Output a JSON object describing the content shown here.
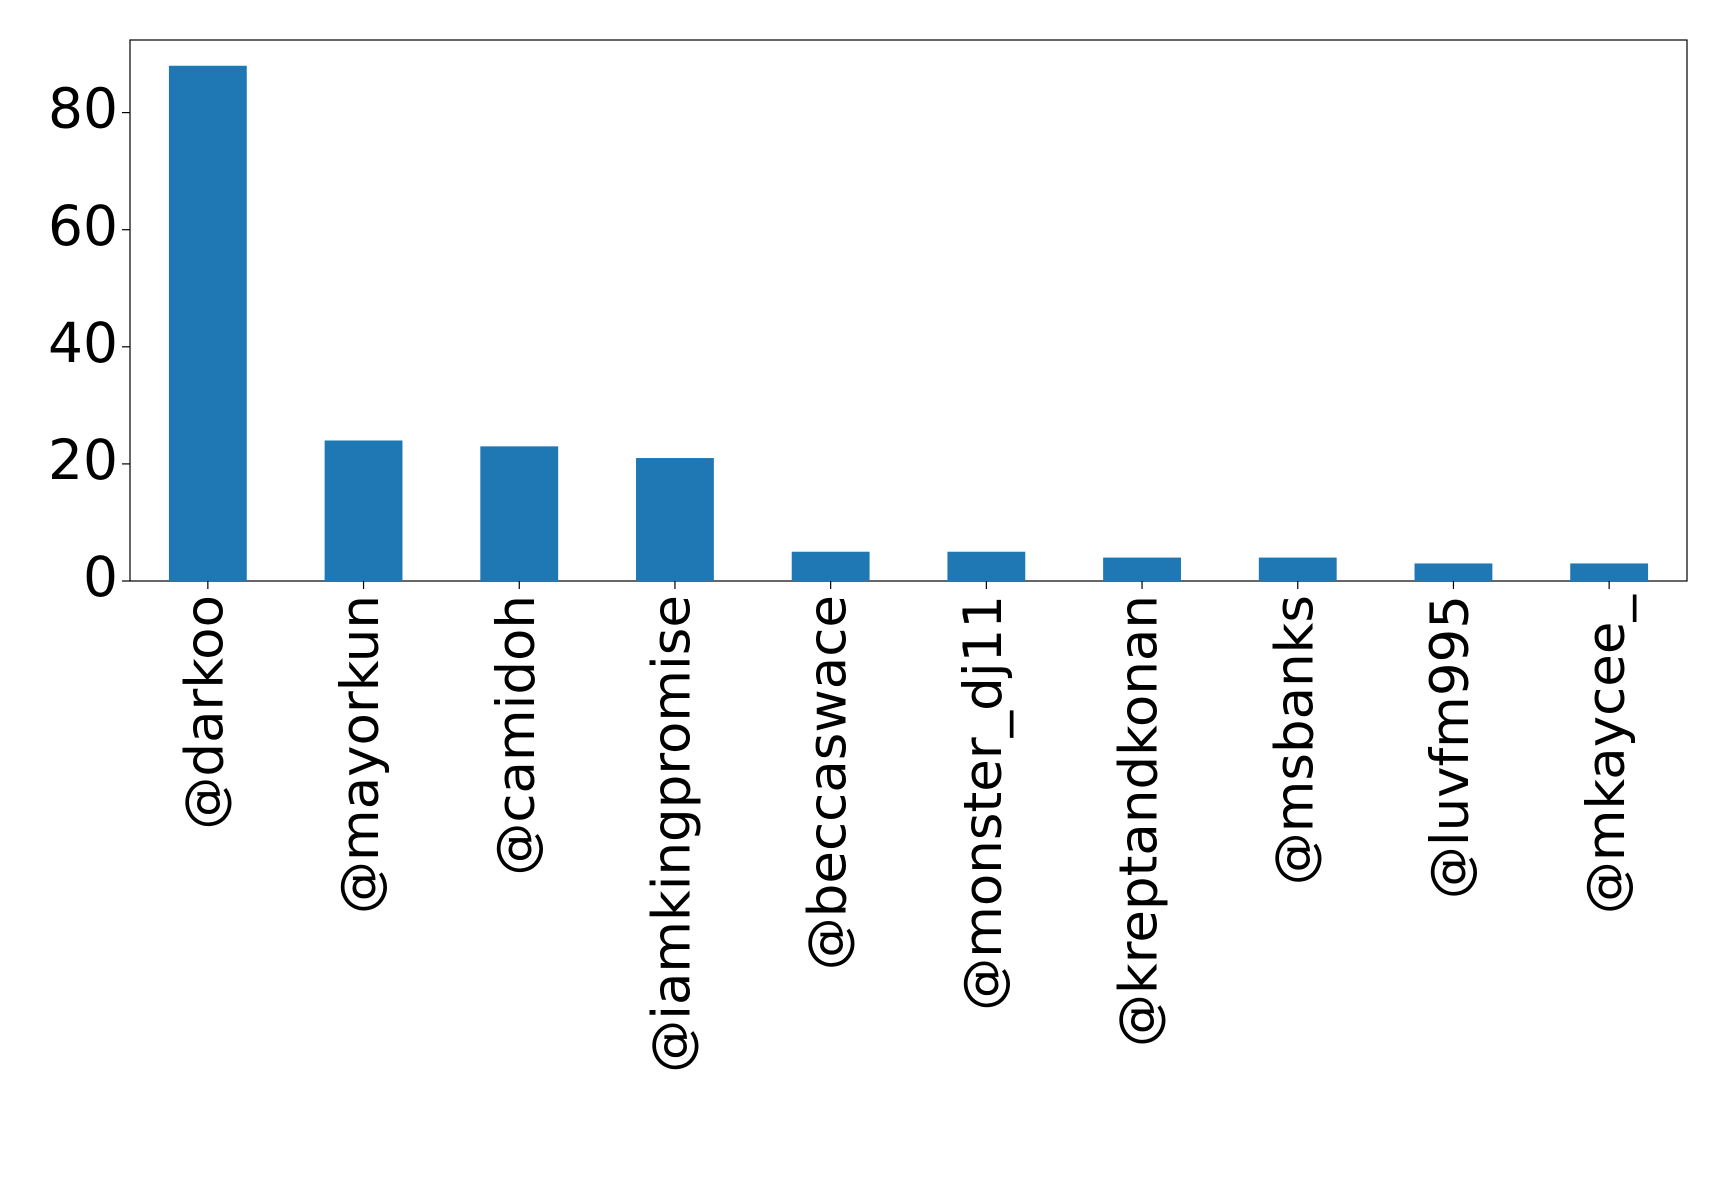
{
  "chart_data": {
    "type": "bar",
    "categories": [
      "@darkoo",
      "@mayorkun",
      "@camidoh",
      "@iamkingpromise",
      "@beccaswace",
      "@monster_dj11",
      "@kreptandkonan",
      "@msbanks",
      "@luvfm995",
      "@mkaycee_"
    ],
    "values": [
      88,
      24,
      23,
      21,
      5,
      5,
      4,
      4,
      3,
      3
    ],
    "color": "#1f77b4",
    "ylim": [
      0,
      92.4
    ],
    "yticks": [
      0,
      20,
      40,
      60,
      80
    ],
    "grid": false
  }
}
